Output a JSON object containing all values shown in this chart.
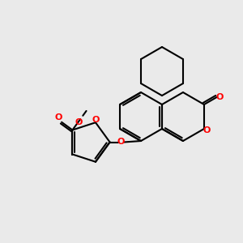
{
  "bg_color": "#eaeaea",
  "bond_color": "#000000",
  "oxygen_color": "#ff0000",
  "lw": 1.5,
  "fig_size": [
    3.0,
    3.0
  ],
  "dpi": 100,
  "xlim": [
    0,
    10
  ],
  "ylim": [
    0,
    10
  ]
}
